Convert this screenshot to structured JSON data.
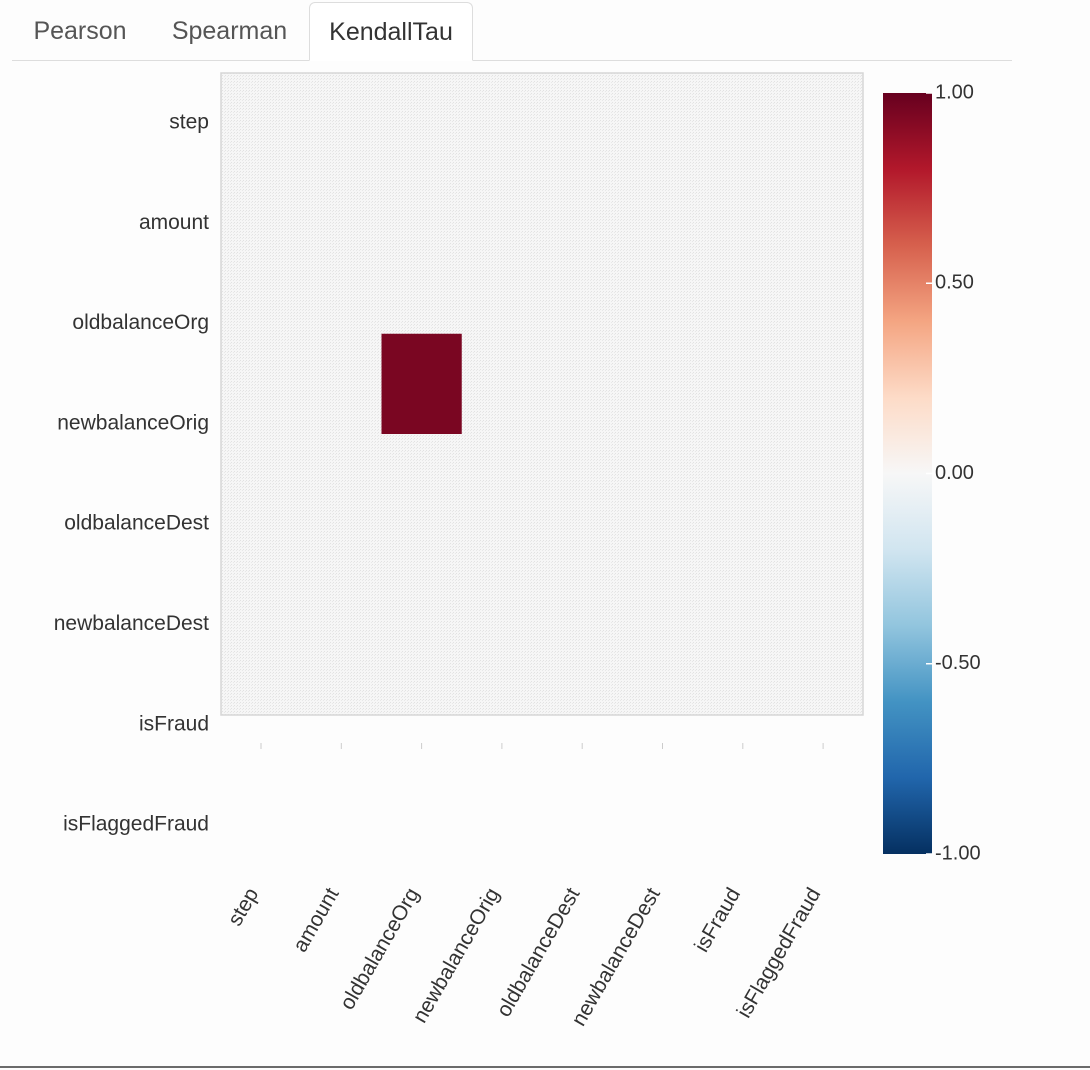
{
  "tabs": [
    {
      "label": "Pearson",
      "active": false
    },
    {
      "label": "Spearman",
      "active": false
    },
    {
      "label": "KendallTau",
      "active": true
    }
  ],
  "chart_data": {
    "type": "heatmap",
    "title": "",
    "row_labels": [
      "step",
      "amount",
      "oldbalanceOrg",
      "newbalanceOrig",
      "oldbalanceDest",
      "newbalanceDest",
      "isFraud",
      "isFlaggedFraud"
    ],
    "column_labels": [
      "step",
      "amount",
      "oldbalanceOrg",
      "newbalanceOrig",
      "oldbalanceDest",
      "newbalanceDest",
      "isFraud",
      "isFlaggedFraud"
    ],
    "values": [
      [
        null,
        null,
        null,
        null,
        null,
        null,
        null,
        null
      ],
      [
        null,
        null,
        null,
        null,
        null,
        null,
        null,
        null
      ],
      [
        null,
        null,
        null,
        null,
        null,
        null,
        null,
        null
      ],
      [
        null,
        null,
        0.95,
        null,
        null,
        null,
        null,
        null
      ],
      [
        null,
        null,
        null,
        null,
        null,
        null,
        null,
        null
      ],
      [
        null,
        null,
        null,
        null,
        null,
        null,
        null,
        null
      ],
      [
        null,
        null,
        null,
        null,
        null,
        null,
        null,
        null
      ],
      [
        null,
        null,
        null,
        null,
        null,
        null,
        null,
        null
      ]
    ],
    "colorbar": {
      "range": [
        -1.0,
        1.0
      ],
      "tick_values": [
        1.0,
        0.5,
        0.0,
        -0.5,
        -1.0
      ],
      "tick_labels": [
        "1.00",
        "0.50",
        "0.00",
        "-0.50",
        "-1.00"
      ],
      "colormap": "RdBu_r",
      "stops": [
        "#67001f",
        "#b2182b",
        "#d6604d",
        "#f4a582",
        "#fddbc7",
        "#f7f7f7",
        "#d1e5f0",
        "#92c5de",
        "#4393c3",
        "#2166ac",
        "#053061"
      ]
    },
    "masked_color": "#ececec"
  }
}
